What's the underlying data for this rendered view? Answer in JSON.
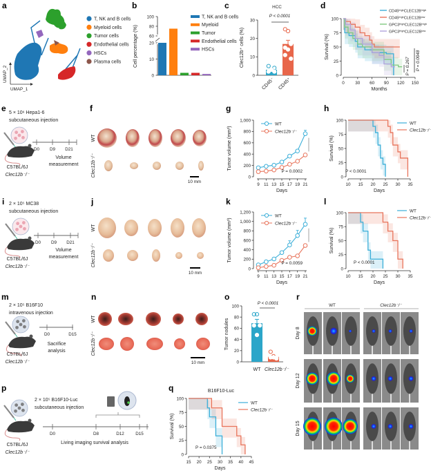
{
  "colors": {
    "wt": "#3aaed8",
    "ko": "#e8735a",
    "wt_bar": "#2ca6c9",
    "ko_bar": "#e8664a"
  },
  "panels": {
    "a": {
      "letter": "a",
      "xaxis": "UMAP_1",
      "yaxis": "UMAP_2",
      "legend": [
        {
          "label": "T, NK and B cells",
          "color": "#1f77b4"
        },
        {
          "label": "Myeloid cells",
          "color": "#ff7f0e"
        },
        {
          "label": "Tumor cells",
          "color": "#2ca02c"
        },
        {
          "label": "Endothelial cells",
          "color": "#d62728"
        },
        {
          "label": "HSCs",
          "color": "#9467bd"
        },
        {
          "label": "Plasma cells",
          "color": "#8c564b"
        }
      ]
    },
    "b": {
      "letter": "b"
    },
    "c": {
      "letter": "c"
    },
    "d": {
      "letter": "d"
    },
    "e": {
      "letter": "e",
      "line1": "5 × 10⁶ Hepa1-6",
      "line2": "subcutaneous injection",
      "timeline": [
        "D0",
        "D9",
        "D21"
      ],
      "step1": "Volume",
      "step2": "measurement",
      "strain": "C57BL/6J",
      "genotype": "Clec12b⁻/⁻"
    },
    "f": {
      "letter": "f",
      "row1": "WT",
      "row2": "Clec12b⁻/⁻",
      "scale": "10 mm"
    },
    "g": {
      "letter": "g"
    },
    "h": {
      "letter": "h"
    },
    "i": {
      "letter": "i",
      "line1": "2 × 10⁵ MC38",
      "line2": "subcutaneous injection",
      "timeline": [
        "D0",
        "D9",
        "D21"
      ],
      "step1": "Volume",
      "step2": "measurement",
      "strain": "C57BL/6J",
      "genotype": "Clec12b⁻/⁻"
    },
    "j": {
      "letter": "j",
      "row1": "WT",
      "row2": "Clec12b⁻/⁻",
      "scale": "10 mm"
    },
    "k": {
      "letter": "k"
    },
    "l": {
      "letter": "l"
    },
    "m": {
      "letter": "m",
      "line1": "2 × 10⁵ B16F10",
      "line2": "intravenous injection",
      "timeline": [
        "D0",
        "D15"
      ],
      "step1": "Sacrifice",
      "step2": "analysis",
      "strain": "C57BL/6J",
      "genotype": "Clec12b⁻/⁻"
    },
    "n": {
      "letter": "n",
      "row1": "WT",
      "row2": "Clec12b⁻/⁻",
      "scale": "10 mm"
    },
    "o": {
      "letter": "o"
    },
    "p": {
      "letter": "p",
      "line1": "2 × 10⁵ B16F10-Luc",
      "line2": "subcutaneous injection",
      "timeline": [
        "D0",
        "D8",
        "D12",
        "D15"
      ],
      "step1": "Living imaging survival analysis",
      "strain": "C57BL/6J",
      "genotype": "Clec12b⁻/⁻"
    },
    "q": {
      "letter": "q"
    },
    "r": {
      "letter": "r",
      "groups": [
        "WT",
        "Clec12b⁻/⁻"
      ],
      "rows": [
        "Day 8",
        "Day 12",
        "Day 15"
      ]
    }
  },
  "chart_data": [
    {
      "id": "b",
      "type": "bar",
      "ylabel": "Cell percentage (%)",
      "categories": [
        "T, NK and B cells",
        "Myeloid",
        "Tumor",
        "Endothelial cells",
        "HSCs"
      ],
      "values": [
        20,
        75,
        1.5,
        1.5,
        0.8
      ],
      "colors": [
        "#1f77b4",
        "#ff7f0e",
        "#2ca02c",
        "#d62728",
        "#9467bd"
      ],
      "yticks": [
        0,
        10,
        20,
        60,
        80,
        100
      ],
      "axis_break": [
        20,
        60
      ],
      "legend_placement": "right"
    },
    {
      "id": "c",
      "type": "bar",
      "title": "HCC",
      "ylabel": "Clec12b⁺ cells (%)",
      "categories": [
        "CD45⁻",
        "CD45⁺"
      ],
      "values": [
        3,
        17
      ],
      "errors": [
        0.6,
        2
      ],
      "points": [
        [
          2,
          3,
          4,
          5,
          3,
          2
        ],
        [
          25,
          24,
          17,
          15,
          14,
          9,
          11
        ]
      ],
      "yticks": [
        0,
        10,
        20,
        30
      ],
      "ylim": [
        0,
        30
      ],
      "pvalue": "P < 0.0001"
    },
    {
      "id": "d",
      "type": "line",
      "subtype": "kaplan-meier",
      "xlabel": "Months",
      "ylabel": "Survival (%)",
      "xticks": [
        0,
        30,
        60,
        90,
        120,
        150
      ],
      "yticks": [
        0,
        25,
        50,
        75,
        100
      ],
      "xlim": [
        0,
        150
      ],
      "ylim": [
        0,
        100
      ],
      "legend_placement": "top-right",
      "series": [
        {
          "name": "CD45ʰⁱᵍʰCLEC12Bʰⁱᵍʰ",
          "color": "#3aaed8",
          "points": [
            [
              0,
              100
            ],
            [
              3,
              75
            ],
            [
              12,
              70
            ],
            [
              25,
              60
            ],
            [
              30,
              50
            ],
            [
              45,
              45
            ],
            [
              60,
              40
            ],
            [
              90,
              38
            ],
            [
              105,
              0
            ]
          ]
        },
        {
          "name": "CD45ʰⁱᵍʰCLEC12Bˡᵒʷ",
          "color": "#e8735a",
          "points": [
            [
              0,
              100
            ],
            [
              5,
              95
            ],
            [
              15,
              90
            ],
            [
              25,
              85
            ],
            [
              35,
              75
            ],
            [
              45,
              70
            ],
            [
              55,
              62
            ],
            [
              60,
              55
            ],
            [
              65,
              50
            ],
            [
              118,
              50
            ]
          ]
        },
        {
          "name": "GPC3ʰⁱᵍʰCLEC12Bʰⁱᵍʰ",
          "color": "#7fc97f",
          "points": [
            [
              0,
              100
            ],
            [
              3,
              85
            ],
            [
              10,
              75
            ],
            [
              20,
              65
            ],
            [
              30,
              55
            ],
            [
              40,
              50
            ],
            [
              60,
              45
            ],
            [
              85,
              28
            ],
            [
              100,
              18
            ],
            [
              115,
              15
            ],
            [
              123,
              15
            ]
          ]
        },
        {
          "name": "GPC3ʰⁱᵍʰCLEC12Bˡᵒʷ",
          "color": "#b1a3dd",
          "points": [
            [
              0,
              100
            ],
            [
              5,
              90
            ],
            [
              15,
              80
            ],
            [
              25,
              65
            ],
            [
              40,
              55
            ],
            [
              60,
              40
            ],
            [
              75,
              35
            ],
            [
              85,
              20
            ],
            [
              100,
              15
            ],
            [
              108,
              15
            ]
          ]
        }
      ],
      "pvalues": [
        "P = 0.267",
        "P = 0.0048"
      ]
    },
    {
      "id": "g",
      "type": "line",
      "xlabel": "Days",
      "ylabel": "Tumor volume (mm³)",
      "x": [
        9,
        11,
        13,
        15,
        17,
        19,
        21
      ],
      "xticks": [
        9,
        11,
        13,
        15,
        17,
        19,
        21
      ],
      "yticks": [
        0,
        200,
        400,
        600,
        800,
        1000
      ],
      "yticklabels": [
        "0",
        "200",
        "400",
        "600",
        "800",
        "1,000"
      ],
      "ylim": [
        0,
        1000
      ],
      "series": [
        {
          "name": "WT",
          "values": [
            160,
            185,
            205,
            260,
            365,
            455,
            760
          ],
          "errors": [
            10,
            10,
            12,
            15,
            20,
            25,
            60
          ]
        },
        {
          "name": "Clec12b⁻/⁻",
          "values": [
            90,
            100,
            120,
            165,
            220,
            275,
            385
          ],
          "errors": [
            8,
            8,
            10,
            12,
            12,
            15,
            25
          ]
        }
      ],
      "pvalue": "P = 0.0002",
      "legend_placement": "top-left"
    },
    {
      "id": "h",
      "type": "line",
      "subtype": "kaplan-meier",
      "xlabel": "Days",
      "ylabel": "Survival (%)",
      "xticks": [
        10,
        15,
        20,
        25,
        30,
        35
      ],
      "yticks": [
        0,
        25,
        50,
        75,
        100
      ],
      "xlim": [
        10,
        35
      ],
      "ylim": [
        0,
        100
      ],
      "series": [
        {
          "name": "WT",
          "points": [
            [
              10,
              100
            ],
            [
              20,
              89
            ],
            [
              21,
              78
            ],
            [
              22,
              56
            ],
            [
              23,
              33
            ],
            [
              24,
              22
            ],
            [
              25,
              0
            ]
          ]
        },
        {
          "name": "Clec12b⁻/⁻",
          "points": [
            [
              10,
              100
            ],
            [
              26,
              89
            ],
            [
              27,
              78
            ],
            [
              28,
              56
            ],
            [
              30,
              44
            ],
            [
              31,
              33
            ],
            [
              34,
              0
            ]
          ]
        }
      ],
      "pvalue": "P < 0.0001",
      "legend_placement": "top-right"
    },
    {
      "id": "k",
      "type": "line",
      "xlabel": "Days",
      "ylabel": "Tumor volume (mm³)",
      "x": [
        9,
        11,
        13,
        15,
        17,
        19,
        21
      ],
      "xticks": [
        9,
        11,
        13,
        15,
        17,
        19,
        21
      ],
      "yticks": [
        0,
        200,
        400,
        600,
        800,
        1000,
        1200
      ],
      "yticklabels": [
        "0",
        "200",
        "400",
        "600",
        "800",
        "1,000",
        "1,200"
      ],
      "ylim": [
        0,
        1200
      ],
      "series": [
        {
          "name": "WT",
          "values": [
            80,
            145,
            205,
            340,
            500,
            700,
            940
          ],
          "errors": [
            15,
            20,
            25,
            30,
            90,
            110,
            130
          ]
        },
        {
          "name": "Clec12b⁻/⁻",
          "values": [
            20,
            45,
            70,
            175,
            240,
            270,
            490
          ],
          "errors": [
            5,
            8,
            10,
            15,
            20,
            20,
            30
          ]
        }
      ],
      "pvalue": "P = 0.0059",
      "legend_placement": "top-left"
    },
    {
      "id": "l",
      "type": "line",
      "subtype": "kaplan-meier",
      "xlabel": "Days",
      "ylabel": "Survival (%)",
      "xticks": [
        10,
        15,
        20,
        25,
        30,
        35
      ],
      "yticks": [
        0,
        25,
        50,
        75,
        100
      ],
      "xlim": [
        10,
        35
      ],
      "ylim": [
        0,
        100
      ],
      "series": [
        {
          "name": "WT",
          "points": [
            [
              10,
              100
            ],
            [
              15,
              83
            ],
            [
              16,
              67
            ],
            [
              18,
              33
            ],
            [
              19,
              17
            ],
            [
              24,
              0
            ]
          ]
        },
        {
          "name": "Clec12b⁻/⁻",
          "points": [
            [
              10,
              100
            ],
            [
              24,
              83
            ],
            [
              26,
              67
            ],
            [
              28,
              50
            ],
            [
              30,
              17
            ],
            [
              32,
              0
            ]
          ]
        }
      ],
      "pvalue": "P < 0.0001",
      "legend_placement": "top-right"
    },
    {
      "id": "o",
      "type": "bar",
      "ylabel": "Tumor nodules",
      "categories": [
        "WT",
        "Clec12b⁻/⁻"
      ],
      "values": [
        69,
        9
      ],
      "errors": [
        7,
        2
      ],
      "points": [
        [
          85,
          85,
          65,
          65,
          48
        ],
        [
          18,
          10,
          8,
          8,
          8,
          6
        ]
      ],
      "yticks": [
        0,
        20,
        40,
        60,
        80,
        100
      ],
      "ylim": [
        0,
        100
      ],
      "pvalue": "P < 0.0001"
    },
    {
      "id": "q",
      "type": "line",
      "subtype": "kaplan-meier",
      "title": "B16F10-Luc",
      "xlabel": "Days",
      "ylabel": "Survival (%)",
      "xticks": [
        15,
        20,
        25,
        30,
        35,
        40,
        45
      ],
      "yticks": [
        0,
        25,
        50,
        75,
        100
      ],
      "xlim": [
        15,
        45
      ],
      "ylim": [
        0,
        100
      ],
      "series": [
        {
          "name": "WT",
          "points": [
            [
              15,
              100
            ],
            [
              24,
              83
            ],
            [
              25,
              67
            ],
            [
              28,
              33
            ],
            [
              31,
              0
            ]
          ]
        },
        {
          "name": "Clec12b⁻/⁻",
          "points": [
            [
              15,
              100
            ],
            [
              26,
              83
            ],
            [
              31,
              50
            ],
            [
              38,
              33
            ],
            [
              40,
              17
            ],
            [
              42,
              0
            ]
          ]
        }
      ],
      "pvalue": "P = 0.0375",
      "legend_placement": "right"
    }
  ]
}
